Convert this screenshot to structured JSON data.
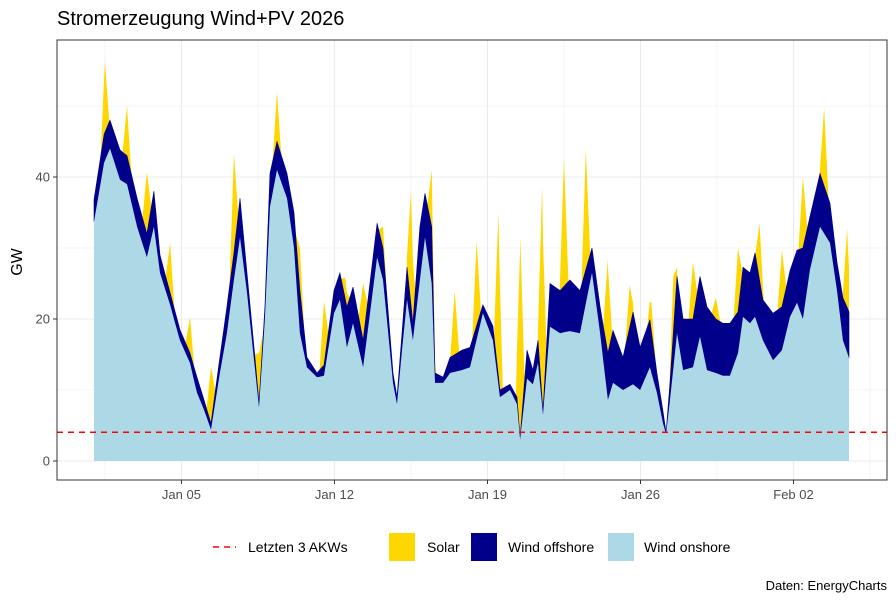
{
  "chart_data": {
    "type": "area",
    "title": "Stromerzeugung Wind+PV 2026",
    "xlabel": "",
    "ylabel": "GW",
    "caption": "Daten: EnergyCharts",
    "ylim": [
      -2.5,
      59.5
    ],
    "xlim_days_since_jan01": [
      -1.7,
      36.3
    ],
    "y_ticks": [
      0,
      20,
      40
    ],
    "x_ticks": [
      {
        "day": 4,
        "label": "Jan 05"
      },
      {
        "day": 11,
        "label": "Jan 12"
      },
      {
        "day": 18,
        "label": "Jan 19"
      },
      {
        "day": 25,
        "label": "Jan 26"
      },
      {
        "day": 32,
        "label": "Feb 02"
      }
    ],
    "grid": true,
    "legend_position": "bottom",
    "legend": [
      {
        "name": "Letzten 3 AKWs",
        "kind": "line",
        "color": "#FF0000"
      },
      {
        "name": "Solar",
        "kind": "fill",
        "color": "#FFD700"
      },
      {
        "name": "Wind offshore",
        "kind": "fill",
        "color": "#00008B"
      },
      {
        "name": "Wind onshore",
        "kind": "fill",
        "color": "#ADD8E6"
      }
    ],
    "reference_line": {
      "name": "Letzten 3 AKWs",
      "value": 4.05
    },
    "x_days": [
      0,
      0.46,
      0.73,
      1.19,
      1.51,
      1.97,
      2.42,
      2.74,
      3.02,
      3.48,
      3.93,
      4.39,
      4.71,
      5.03,
      5.35,
      5.76,
      6.08,
      6.4,
      6.68,
      7.0,
      7.32,
      7.55,
      7.82,
      8.05,
      8.37,
      8.83,
      9.15,
      9.42,
      9.74,
      10.2,
      10.52,
      10.98,
      11.25,
      11.57,
      11.85,
      12.31,
      12.95,
      13.22,
      13.68,
      13.86,
      14.09,
      14.32,
      14.59,
      14.91,
      15.14,
      15.45,
      15.6,
      15.97,
      16.29,
      16.83,
      17.2,
      17.79,
      18.25,
      18.57,
      19.03,
      19.35,
      19.49,
      19.81,
      20.08,
      20.31,
      20.54,
      20.86,
      21.32,
      21.77,
      22.23,
      22.78,
      23.15,
      23.51,
      23.74,
      24.2,
      24.66,
      24.98,
      25.43,
      25.75,
      26.03,
      26.17,
      26.35,
      26.67,
      26.95,
      27.4,
      27.72,
      28.04,
      28.45,
      28.77,
      29.09,
      29.46,
      29.69,
      30.01,
      30.24,
      30.6,
      31.06,
      31.47,
      31.84,
      32.16,
      32.43,
      32.75,
      33.21,
      33.67,
      33.99,
      34.26,
      34.54
    ],
    "series": [
      {
        "name": "Wind onshore",
        "values": [
          33.7,
          42,
          44,
          39.6,
          39,
          33,
          28.7,
          33,
          26.5,
          22,
          17,
          13.8,
          9.6,
          7.2,
          4.4,
          12.4,
          18,
          25.5,
          31.5,
          23.7,
          14.2,
          7.5,
          20,
          35.8,
          41,
          37,
          30,
          18,
          13.2,
          11.8,
          12,
          20.8,
          22.7,
          16,
          19.4,
          13.2,
          28.7,
          25.5,
          11,
          8,
          15.6,
          22.7,
          17,
          25.5,
          31.5,
          25,
          11,
          11,
          12.4,
          12.8,
          13.2,
          20.8,
          17,
          9,
          10,
          8,
          3,
          11.6,
          10.8,
          13.8,
          6.5,
          18.9,
          18,
          18.3,
          18,
          26.5,
          18,
          8.6,
          11,
          10,
          10.8,
          10,
          13.2,
          9.6,
          5.3,
          3.8,
          8.6,
          18,
          12.8,
          13.2,
          17.5,
          12.8,
          12.4,
          12,
          12,
          15.2,
          20.3,
          19.4,
          20.3,
          17,
          14.2,
          15.6,
          20.3,
          22.3,
          20,
          26.9,
          33,
          30.7,
          24,
          17,
          14.5
        ]
      },
      {
        "name": "Wind offshore",
        "values": [
          3.1,
          4,
          4,
          4.2,
          4,
          4,
          3.3,
          5,
          2.5,
          1.7,
          1.5,
          1.4,
          2.2,
          1.4,
          0.9,
          2.2,
          3.7,
          3.8,
          5.5,
          2.8,
          1.8,
          0.7,
          1.7,
          4.7,
          4,
          3.5,
          5,
          6,
          1.4,
          0.6,
          1.5,
          3.2,
          3.8,
          5.7,
          5.1,
          3.8,
          4.8,
          4.5,
          1.4,
          1,
          2.4,
          4.6,
          2.4,
          7.5,
          6.2,
          8,
          1.4,
          0.8,
          2.2,
          2.8,
          2.8,
          1.2,
          2,
          1,
          0.8,
          1,
          0.2,
          4,
          2,
          3.2,
          0.5,
          6.1,
          6,
          7.2,
          6,
          3.5,
          3.7,
          6.6,
          7.4,
          4.6,
          10.2,
          6,
          6.7,
          2.8,
          1.7,
          0.2,
          2.4,
          8,
          7.2,
          6.8,
          8.5,
          8.9,
          7.6,
          7.4,
          7.4,
          5.8,
          7,
          7.1,
          9,
          5.7,
          6.6,
          6.1,
          6.5,
          7.4,
          10,
          7.5,
          7.5,
          5.6,
          4,
          6,
          6.5
        ]
      },
      {
        "name": "Solar",
        "peaks": [
          {
            "day": 0.5,
            "value": 10
          },
          {
            "day": 1.51,
            "value": 7
          },
          {
            "day": 2.42,
            "value": 8.7
          },
          {
            "day": 3.48,
            "value": 7
          },
          {
            "day": 4.39,
            "value": 5
          },
          {
            "day": 5.35,
            "value": 8
          },
          {
            "day": 6.4,
            "value": 14
          },
          {
            "day": 7.55,
            "value": 7
          },
          {
            "day": 8.37,
            "value": 7
          },
          {
            "day": 9.42,
            "value": 6
          },
          {
            "day": 10.52,
            "value": 9
          },
          {
            "day": 11.5,
            "value": 3
          },
          {
            "day": 12.31,
            "value": 8
          },
          {
            "day": 13.22,
            "value": 3
          },
          {
            "day": 14.5,
            "value": 16
          },
          {
            "day": 15.45,
            "value": 8
          },
          {
            "day": 16.5,
            "value": 9
          },
          {
            "day": 17.5,
            "value": 12
          },
          {
            "day": 18.5,
            "value": 23
          },
          {
            "day": 19.5,
            "value": 28
          },
          {
            "day": 20.5,
            "value": 30
          },
          {
            "day": 21.5,
            "value": 18
          },
          {
            "day": 22.5,
            "value": 17
          },
          {
            "day": 23.5,
            "value": 13
          },
          {
            "day": 24.5,
            "value": 6
          },
          {
            "day": 25.5,
            "value": 4
          },
          {
            "day": 26.5,
            "value": 8
          },
          {
            "day": 27.4,
            "value": 8
          },
          {
            "day": 28.45,
            "value": 3
          },
          {
            "day": 29.46,
            "value": 9
          },
          {
            "day": 30.45,
            "value": 8
          },
          {
            "day": 31.47,
            "value": 8
          },
          {
            "day": 32.43,
            "value": 10
          },
          {
            "day": 33.4,
            "value": 11
          },
          {
            "day": 34.45,
            "value": 11
          }
        ]
      }
    ]
  }
}
